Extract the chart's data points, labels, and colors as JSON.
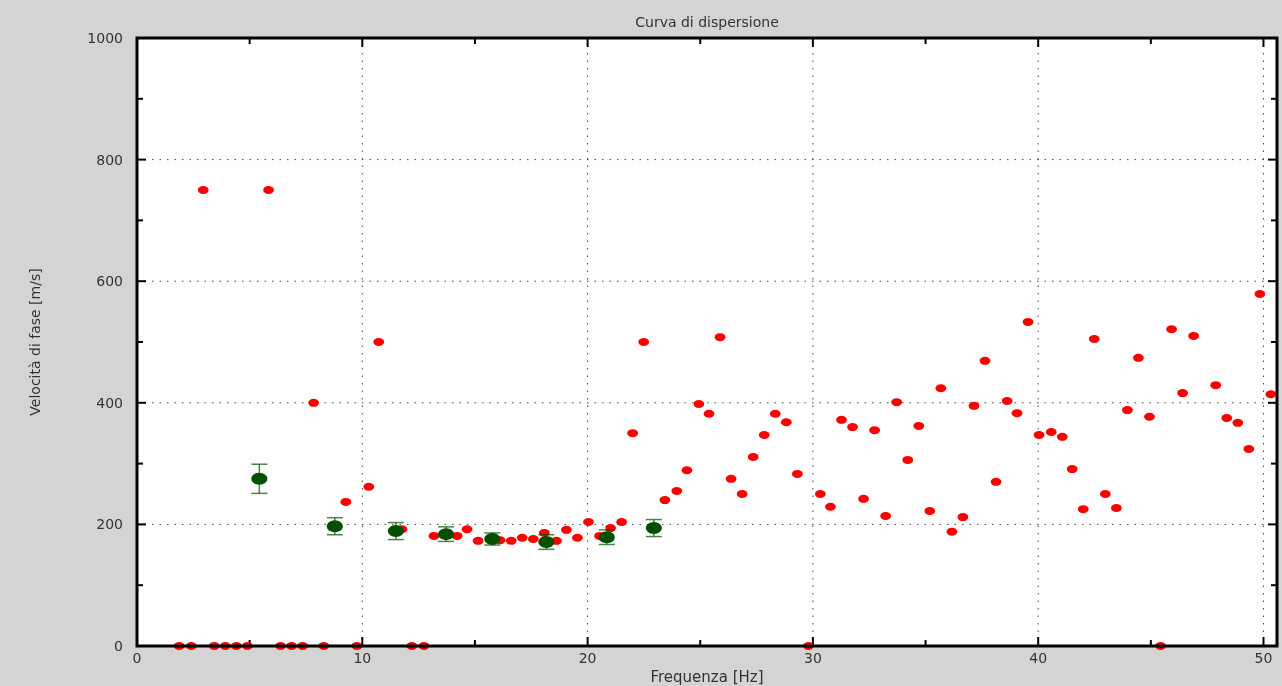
{
  "chart_data": {
    "type": "scatter",
    "title": "Curva di dispersione",
    "xlabel": "Frequenza [Hz]",
    "ylabel": "Velocità di fase  [m/s]",
    "xlim": [
      0,
      50.6
    ],
    "ylim": [
      0,
      1000
    ],
    "xticks": [
      0,
      {
        "value": 5,
        "label": null
      },
      10,
      {
        "value": 15,
        "label": null
      },
      20,
      {
        "value": 25,
        "label": null
      },
      30,
      {
        "value": 35,
        "label": null
      },
      40,
      {
        "value": 45,
        "label": null
      },
      50
    ],
    "yticks": [
      0,
      {
        "value": 100,
        "label": null
      },
      200,
      {
        "value": 300,
        "label": null
      },
      400,
      {
        "value": 500,
        "label": null
      },
      600,
      {
        "value": 700,
        "label": null
      },
      800,
      {
        "value": 900,
        "label": null
      },
      1000
    ],
    "grid": true,
    "marker": "circle",
    "series": [
      {
        "color": "#ff0000",
        "x": [
          1.87,
          2.41,
          2.94,
          3.43,
          3.92,
          4.41,
          4.9,
          5.84,
          6.37,
          6.86,
          7.35,
          7.84,
          8.29,
          9.27,
          9.76,
          10.29,
          10.73,
          11.76,
          12.2,
          12.74,
          13.18,
          14.21,
          14.65,
          15.14,
          16.12,
          16.61,
          17.1,
          17.59,
          18.08,
          18.62,
          19.06,
          19.55,
          20.04,
          20.53,
          21.02,
          21.51,
          22.0,
          22.49,
          23.43,
          23.96,
          24.41,
          24.94,
          25.39,
          25.88,
          26.37,
          26.86,
          27.35,
          27.84,
          28.33,
          28.82,
          29.31,
          29.8,
          30.33,
          30.78,
          31.27,
          31.76,
          32.25,
          32.74,
          33.23,
          33.72,
          34.21,
          34.7,
          35.19,
          35.68,
          36.17,
          36.66,
          37.15,
          37.64,
          38.13,
          38.62,
          39.06,
          39.55,
          40.04,
          40.58,
          41.07,
          41.51,
          42.0,
          42.49,
          42.98,
          43.47,
          43.96,
          44.45,
          44.94,
          45.43,
          45.92,
          46.41,
          46.9,
          47.88,
          48.37,
          48.86,
          49.35,
          49.84,
          50.33
        ],
        "values": [
          0,
          0,
          750,
          0,
          0,
          0,
          0,
          750,
          0,
          0,
          0,
          400,
          0,
          237,
          0,
          262,
          500,
          192,
          0,
          0,
          181,
          181,
          192,
          173,
          174,
          173,
          178,
          176,
          186,
          173,
          191,
          178,
          204,
          181,
          194,
          204,
          350,
          500,
          240,
          255,
          289,
          398,
          382,
          508,
          275,
          250,
          311,
          347,
          382,
          368,
          283,
          0,
          250,
          229,
          372,
          360,
          242,
          355,
          214,
          401,
          306,
          362,
          222,
          424,
          188,
          212,
          395,
          469,
          270,
          403,
          383,
          533,
          347,
          352,
          344,
          291,
          225,
          505,
          250,
          227,
          388,
          474,
          377,
          0,
          521,
          416,
          510,
          429,
          375,
          367,
          324,
          579,
          414
        ]
      },
      {
        "color": "#005000",
        "x": [
          5.43,
          8.78,
          11.49,
          13.72,
          15.77,
          18.17,
          20.85,
          22.94
        ],
        "values": [
          275,
          197,
          189,
          184,
          176,
          171,
          179,
          194
        ],
        "errors": [
          24,
          14,
          14,
          12,
          10,
          12,
          12,
          14
        ]
      }
    ]
  }
}
